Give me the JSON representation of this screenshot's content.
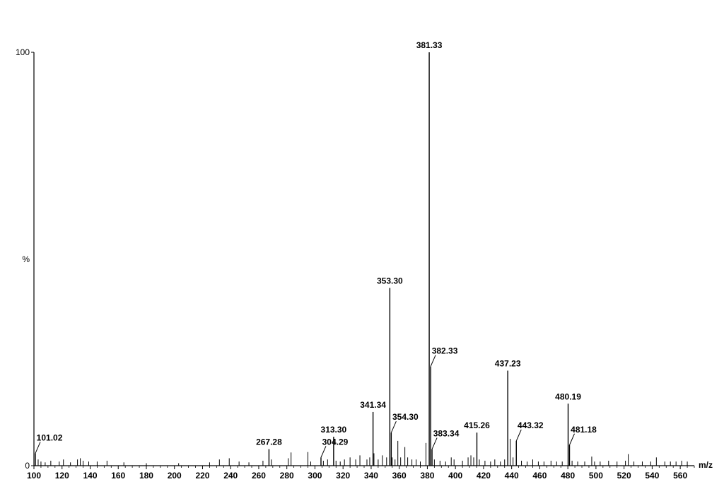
{
  "chart_data": {
    "type": "bar",
    "title": "",
    "xlabel": "m/z",
    "ylabel": "%",
    "xlim": [
      100,
      570
    ],
    "ylim": [
      0,
      100
    ],
    "x_ticks": [
      100,
      120,
      140,
      160,
      180,
      200,
      220,
      240,
      260,
      280,
      300,
      320,
      340,
      360,
      380,
      400,
      420,
      440,
      460,
      480,
      500,
      520,
      540,
      560
    ],
    "y_tick_labels": [
      "100",
      "%",
      "0"
    ],
    "grid": false,
    "legend": "none",
    "labeled_peaks": [
      {
        "mz": 101.02,
        "intensity": 3,
        "label": "101.02",
        "leader": true
      },
      {
        "mz": 267.28,
        "intensity": 4,
        "label": "267.28",
        "leader": false
      },
      {
        "mz": 304.29,
        "intensity": 2,
        "label": "304.29",
        "leader": true
      },
      {
        "mz": 313.3,
        "intensity": 7,
        "label": "313.30",
        "leader": false
      },
      {
        "mz": 341.34,
        "intensity": 13,
        "label": "341.34",
        "leader": false
      },
      {
        "mz": 353.3,
        "intensity": 43,
        "label": "353.30",
        "leader": false
      },
      {
        "mz": 354.3,
        "intensity": 8,
        "label": "354.30",
        "leader": true
      },
      {
        "mz": 381.33,
        "intensity": 100,
        "label": "381.33",
        "leader": false
      },
      {
        "mz": 382.33,
        "intensity": 24,
        "label": "382.33",
        "leader": true
      },
      {
        "mz": 383.34,
        "intensity": 4,
        "label": "383.34",
        "leader": true
      },
      {
        "mz": 415.26,
        "intensity": 8,
        "label": "415.26",
        "leader": false
      },
      {
        "mz": 437.23,
        "intensity": 23,
        "label": "437.23",
        "leader": false
      },
      {
        "mz": 443.32,
        "intensity": 6,
        "label": "443.32",
        "leader": true
      },
      {
        "mz": 480.19,
        "intensity": 15,
        "label": "480.19",
        "leader": false
      },
      {
        "mz": 481.18,
        "intensity": 5,
        "label": "481.18",
        "leader": true
      }
    ],
    "minor_peaks": [
      {
        "mz": 103,
        "intensity": 1.5
      },
      {
        "mz": 105,
        "intensity": 1
      },
      {
        "mz": 108,
        "intensity": 0.8
      },
      {
        "mz": 112,
        "intensity": 1.2
      },
      {
        "mz": 118,
        "intensity": 1
      },
      {
        "mz": 121,
        "intensity": 1.5
      },
      {
        "mz": 126,
        "intensity": 0.8
      },
      {
        "mz": 131,
        "intensity": 1.5
      },
      {
        "mz": 133,
        "intensity": 1.8
      },
      {
        "mz": 135,
        "intensity": 1.2
      },
      {
        "mz": 139,
        "intensity": 1
      },
      {
        "mz": 145,
        "intensity": 1
      },
      {
        "mz": 152,
        "intensity": 1.2
      },
      {
        "mz": 164,
        "intensity": 0.8
      },
      {
        "mz": 180,
        "intensity": 0.6
      },
      {
        "mz": 203,
        "intensity": 0.6
      },
      {
        "mz": 225,
        "intensity": 0.8
      },
      {
        "mz": 232,
        "intensity": 1.5
      },
      {
        "mz": 239,
        "intensity": 1.8
      },
      {
        "mz": 246,
        "intensity": 1
      },
      {
        "mz": 253,
        "intensity": 0.8
      },
      {
        "mz": 263,
        "intensity": 1.2
      },
      {
        "mz": 269,
        "intensity": 1.5
      },
      {
        "mz": 281,
        "intensity": 1.8
      },
      {
        "mz": 283,
        "intensity": 3.2
      },
      {
        "mz": 295,
        "intensity": 3.3
      },
      {
        "mz": 297,
        "intensity": 1
      },
      {
        "mz": 306,
        "intensity": 1.2
      },
      {
        "mz": 309,
        "intensity": 1.5
      },
      {
        "mz": 315,
        "intensity": 1.2
      },
      {
        "mz": 318,
        "intensity": 1
      },
      {
        "mz": 321,
        "intensity": 1.5
      },
      {
        "mz": 325,
        "intensity": 2
      },
      {
        "mz": 329,
        "intensity": 1.5
      },
      {
        "mz": 332,
        "intensity": 2.5
      },
      {
        "mz": 337,
        "intensity": 1.5
      },
      {
        "mz": 339,
        "intensity": 2
      },
      {
        "mz": 342,
        "intensity": 3
      },
      {
        "mz": 345,
        "intensity": 1.5
      },
      {
        "mz": 348,
        "intensity": 2.5
      },
      {
        "mz": 351,
        "intensity": 2
      },
      {
        "mz": 355,
        "intensity": 2
      },
      {
        "mz": 357,
        "intensity": 1.5
      },
      {
        "mz": 359,
        "intensity": 6
      },
      {
        "mz": 361,
        "intensity": 2
      },
      {
        "mz": 364,
        "intensity": 4.5
      },
      {
        "mz": 366,
        "intensity": 2
      },
      {
        "mz": 369,
        "intensity": 1.5
      },
      {
        "mz": 372,
        "intensity": 1.5
      },
      {
        "mz": 375,
        "intensity": 1
      },
      {
        "mz": 379,
        "intensity": 5.5
      },
      {
        "mz": 385,
        "intensity": 1.5
      },
      {
        "mz": 389,
        "intensity": 1.2
      },
      {
        "mz": 393,
        "intensity": 1
      },
      {
        "mz": 397,
        "intensity": 2
      },
      {
        "mz": 399,
        "intensity": 1.5
      },
      {
        "mz": 405,
        "intensity": 1.2
      },
      {
        "mz": 409,
        "intensity": 2
      },
      {
        "mz": 411,
        "intensity": 2.5
      },
      {
        "mz": 413,
        "intensity": 2
      },
      {
        "mz": 417,
        "intensity": 1.5
      },
      {
        "mz": 421,
        "intensity": 1.2
      },
      {
        "mz": 425,
        "intensity": 1
      },
      {
        "mz": 428,
        "intensity": 1.5
      },
      {
        "mz": 432,
        "intensity": 1
      },
      {
        "mz": 435,
        "intensity": 1.5
      },
      {
        "mz": 439,
        "intensity": 6.5
      },
      {
        "mz": 441,
        "intensity": 2
      },
      {
        "mz": 447,
        "intensity": 1.2
      },
      {
        "mz": 451,
        "intensity": 1
      },
      {
        "mz": 455,
        "intensity": 1.5
      },
      {
        "mz": 459,
        "intensity": 1
      },
      {
        "mz": 463,
        "intensity": 1
      },
      {
        "mz": 468,
        "intensity": 1.2
      },
      {
        "mz": 472,
        "intensity": 1
      },
      {
        "mz": 476,
        "intensity": 1
      },
      {
        "mz": 483,
        "intensity": 1.2
      },
      {
        "mz": 487,
        "intensity": 1
      },
      {
        "mz": 492,
        "intensity": 1
      },
      {
        "mz": 497,
        "intensity": 2.2
      },
      {
        "mz": 499,
        "intensity": 1
      },
      {
        "mz": 503,
        "intensity": 1
      },
      {
        "mz": 509,
        "intensity": 1.2
      },
      {
        "mz": 515,
        "intensity": 1
      },
      {
        "mz": 521,
        "intensity": 1.2
      },
      {
        "mz": 523,
        "intensity": 2.8
      },
      {
        "mz": 527,
        "intensity": 1
      },
      {
        "mz": 533,
        "intensity": 1
      },
      {
        "mz": 539,
        "intensity": 1
      },
      {
        "mz": 543,
        "intensity": 2
      },
      {
        "mz": 549,
        "intensity": 1
      },
      {
        "mz": 553,
        "intensity": 1
      },
      {
        "mz": 557,
        "intensity": 1
      },
      {
        "mz": 561,
        "intensity": 1.2
      },
      {
        "mz": 565,
        "intensity": 1
      }
    ]
  }
}
